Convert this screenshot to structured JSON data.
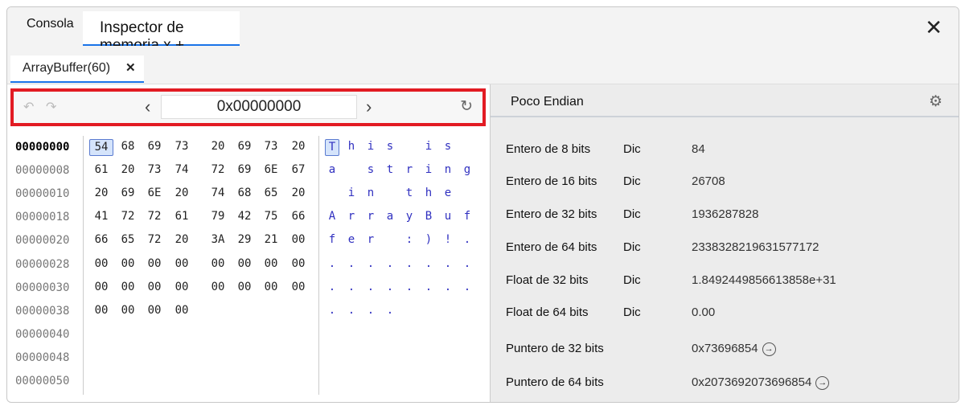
{
  "tabs": [
    {
      "label": "Consola"
    },
    {
      "label": "Inspector de memoria x +"
    }
  ],
  "subtab": {
    "label": "ArrayBuffer(60)",
    "close": "✕"
  },
  "toolbar": {
    "address": "0x00000000"
  },
  "hex_rows": [
    {
      "address": "00000000",
      "bytes": [
        "54",
        "68",
        "69",
        "73",
        "20",
        "69",
        "73",
        "20"
      ],
      "ascii": [
        "T",
        "h",
        "i",
        "s",
        " ",
        "i",
        "s",
        " "
      ]
    },
    {
      "address": "00000008",
      "bytes": [
        "61",
        "20",
        "73",
        "74",
        "72",
        "69",
        "6E",
        "67"
      ],
      "ascii": [
        "a",
        " ",
        "s",
        "t",
        "r",
        "i",
        "n",
        "g"
      ]
    },
    {
      "address": "00000010",
      "bytes": [
        "20",
        "69",
        "6E",
        "20",
        "74",
        "68",
        "65",
        "20"
      ],
      "ascii": [
        " ",
        "i",
        "n",
        " ",
        "t",
        "h",
        "e",
        " "
      ]
    },
    {
      "address": "00000018",
      "bytes": [
        "41",
        "72",
        "72",
        "61",
        "79",
        "42",
        "75",
        "66"
      ],
      "ascii": [
        "A",
        "r",
        "r",
        "a",
        "y",
        "B",
        "u",
        "f"
      ]
    },
    {
      "address": "00000020",
      "bytes": [
        "66",
        "65",
        "72",
        "20",
        "3A",
        "29",
        "21",
        "00"
      ],
      "ascii": [
        "f",
        "e",
        "r",
        " ",
        ":",
        ")",
        "!",
        "."
      ]
    },
    {
      "address": "00000028",
      "bytes": [
        "00",
        "00",
        "00",
        "00",
        "00",
        "00",
        "00",
        "00"
      ],
      "ascii": [
        ".",
        ".",
        ".",
        ".",
        ".",
        ".",
        ".",
        "."
      ]
    },
    {
      "address": "00000030",
      "bytes": [
        "00",
        "00",
        "00",
        "00",
        "00",
        "00",
        "00",
        "00"
      ],
      "ascii": [
        ".",
        ".",
        ".",
        ".",
        ".",
        ".",
        ".",
        "."
      ]
    },
    {
      "address": "00000038",
      "bytes": [
        "00",
        "00",
        "00",
        "00"
      ],
      "ascii": [
        ".",
        ".",
        ".",
        "."
      ]
    },
    {
      "address": "00000040",
      "bytes": [],
      "ascii": []
    },
    {
      "address": "00000048",
      "bytes": [],
      "ascii": []
    },
    {
      "address": "00000050",
      "bytes": [],
      "ascii": []
    }
  ],
  "inspector": {
    "endian": "Poco  Endian",
    "rows": [
      {
        "label": "Entero de 8 bits",
        "mode": "Dic",
        "value": "84"
      },
      {
        "label": "Entero de 16 bits",
        "mode": "Dic",
        "value": "26708"
      },
      {
        "label": "Entero de 32 bits",
        "mode": "Dic",
        "value": "1936287828"
      },
      {
        "label": "Entero de 64 bits",
        "mode": "Dic",
        "value": "2338328219631577172"
      },
      {
        "label": "Float de 32 bits",
        "mode": "Dic",
        "value": "1.8492449856613858e+31"
      },
      {
        "label": "Float de 64 bits",
        "mode": "Dic",
        "value": "0.00"
      },
      {
        "label": "Puntero de 32 bits",
        "mode": "",
        "value": "0x73696854",
        "link": true
      },
      {
        "label": "Puntero de 64 bits",
        "mode": "",
        "value": "0x2073692073696854",
        "link": true
      }
    ]
  },
  "colors": {
    "accent": "#1a73e8",
    "highlight_border": "#e21b23",
    "ascii": "#3030c0"
  }
}
